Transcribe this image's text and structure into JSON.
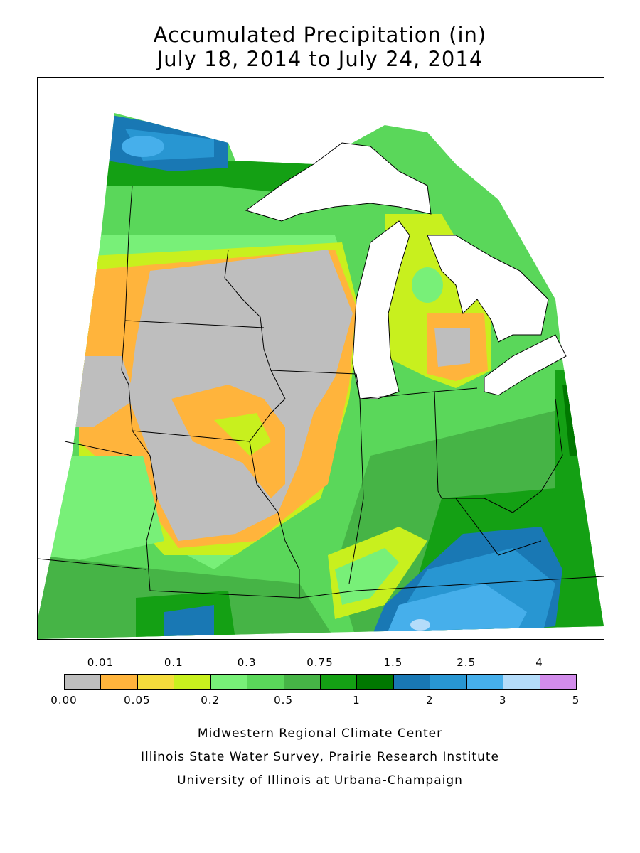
{
  "title": {
    "line1": "Accumulated Precipitation (in)",
    "line2": "July 18, 2014 to July 24, 2014"
  },
  "legend": {
    "upper_labels": [
      "0.01",
      "0.1",
      "0.3",
      "0.75",
      "1.5",
      "2.5",
      "4"
    ],
    "lower_labels": [
      "0.00",
      "0.05",
      "0.2",
      "0.5",
      "1",
      "2",
      "3",
      "5"
    ],
    "colors": [
      "#bebebe",
      "#ffb43c",
      "#f5dc3c",
      "#c8f01e",
      "#78f078",
      "#5ad75a",
      "#46b446",
      "#14a014",
      "#007800",
      "#1978b4",
      "#2896d2",
      "#46afeb",
      "#b4dcfa",
      "#d28ceb"
    ]
  },
  "credits": {
    "line1": "Midwestern Regional Climate Center",
    "line2": "Illinois State Water Survey, Prairie Research Institute",
    "line3": "University of Illinois at Urbana-Champaign"
  },
  "map": {
    "lake_color": "#ffffff",
    "dry_color": "#bebebe"
  }
}
